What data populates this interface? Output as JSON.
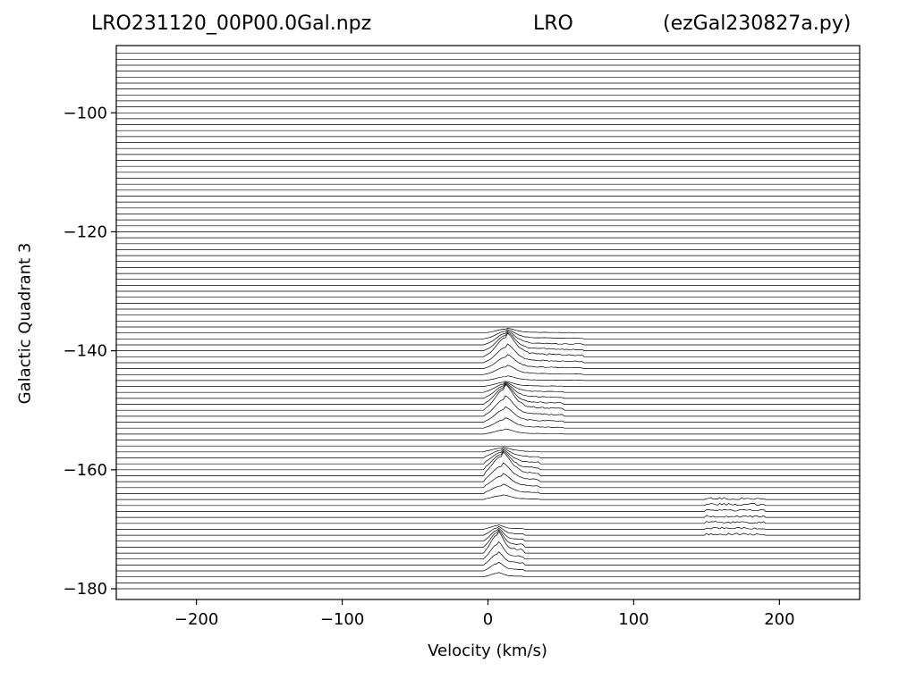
{
  "chart_data": {
    "type": "line",
    "title_left": "LRO231120_00P00.0Gal.npz",
    "title_middle": "LRO",
    "title_right": "(ezGal230827a.py)",
    "xlabel": "Velocity (km/s)",
    "ylabel": "Galactic Quadrant 3",
    "xlim": [
      -255,
      255
    ],
    "ylim": [
      -181.8,
      -88.7
    ],
    "xticks": [
      -200,
      -100,
      0,
      100,
      200
    ],
    "xtick_labels": [
      "−200",
      "−100",
      "0",
      "100",
      "200"
    ],
    "yticks": [
      -100,
      -120,
      -140,
      -160,
      -180
    ],
    "ytick_labels": [
      "−100",
      "−120",
      "−140",
      "−160",
      "−180"
    ],
    "grid": false,
    "trace_longitudes": {
      "start": -180,
      "end": -90,
      "step": 1
    },
    "trace_baseline_velocity_range": [
      -255,
      255
    ],
    "trace_peak_scale_deg": 1,
    "emission_features": [
      {
        "longitude": -141,
        "velocity_center": 12,
        "velocity_width": 6,
        "amplitude_deg": 3.2,
        "tail_extent_kms": 65
      },
      {
        "longitude": -150,
        "velocity_center": 11,
        "velocity_width": 6,
        "amplitude_deg": 3.5,
        "tail_extent_kms": 52
      },
      {
        "longitude": -161,
        "velocity_center": 9,
        "velocity_width": 6,
        "amplitude_deg": 3.2,
        "tail_extent_kms": 35
      },
      {
        "longitude": -174,
        "velocity_center": 6,
        "velocity_width": 4,
        "amplitude_deg": 3.0,
        "tail_extent_kms": 25
      }
    ],
    "high_velocity_features": [
      {
        "longitude_range": [
          -171,
          -165
        ],
        "velocity_range": [
          150,
          190
        ]
      }
    ]
  }
}
